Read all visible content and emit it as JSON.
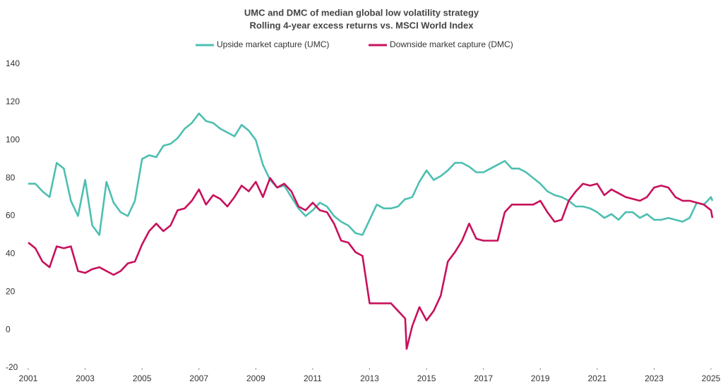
{
  "chart_data": {
    "type": "line",
    "title": "UMC and DMC of median global low volatility strategy",
    "subtitle": "Rolling 4-year excess returns vs. MSCI World Index",
    "x": [
      2001,
      2001.25,
      2001.5,
      2001.75,
      2002,
      2002.25,
      2002.5,
      2002.75,
      2003,
      2003.25,
      2003.5,
      2003.75,
      2004,
      2004.25,
      2004.5,
      2004.75,
      2005,
      2005.25,
      2005.5,
      2005.75,
      2006,
      2006.25,
      2006.5,
      2006.75,
      2007,
      2007.25,
      2007.5,
      2007.75,
      2008,
      2008.25,
      2008.5,
      2008.75,
      2009,
      2009.25,
      2009.5,
      2009.75,
      2010,
      2010.25,
      2010.5,
      2010.75,
      2011,
      2011.25,
      2011.5,
      2011.75,
      2012,
      2012.25,
      2012.5,
      2012.75,
      2013,
      2013.25,
      2013.5,
      2013.75,
      2014,
      2014.25,
      2014.3,
      2014.5,
      2014.75,
      2015,
      2015.25,
      2015.5,
      2015.75,
      2016,
      2016.25,
      2016.5,
      2016.75,
      2017,
      2017.25,
      2017.5,
      2017.75,
      2018,
      2018.25,
      2018.5,
      2018.75,
      2019,
      2019.25,
      2019.5,
      2019.75,
      2020,
      2020.25,
      2020.5,
      2020.75,
      2021,
      2021.25,
      2021.5,
      2021.75,
      2022,
      2022.25,
      2022.5,
      2022.75,
      2023,
      2023.25,
      2023.5,
      2023.75,
      2024,
      2024.25,
      2024.5,
      2024.75,
      2025,
      2025.05
    ],
    "series": [
      {
        "name": "Upside market capture (UMC)",
        "color": "#4dbfb1",
        "values": [
          77,
          77,
          73,
          70,
          88,
          85,
          68,
          60,
          79,
          55,
          50,
          78,
          67,
          62,
          60,
          68,
          90,
          92,
          91,
          97,
          98,
          101,
          106,
          109,
          114,
          110,
          109,
          106,
          104,
          102,
          108,
          105,
          100,
          87,
          79,
          75,
          76,
          70,
          64,
          60,
          63,
          67,
          65,
          60,
          57,
          55,
          51,
          50,
          58,
          66,
          64,
          64,
          65,
          69,
          69,
          70,
          78,
          84,
          79,
          81,
          84,
          88,
          88,
          86,
          83,
          83,
          85,
          87,
          89,
          85,
          85,
          83,
          80,
          77,
          73,
          71,
          70,
          68,
          65,
          65,
          64,
          62,
          59,
          61,
          58,
          62,
          62,
          59,
          61,
          58,
          58,
          59,
          58,
          57,
          59,
          67,
          66,
          70,
          68
        ]
      },
      {
        "name": "Downside market capture (DMC)",
        "color": "#c8105b",
        "values": [
          46,
          43,
          36,
          33,
          44,
          43,
          44,
          31,
          30,
          32,
          33,
          31,
          29,
          31,
          35,
          36,
          45,
          52,
          56,
          52,
          55,
          63,
          64,
          68,
          74,
          66,
          71,
          69,
          65,
          70,
          76,
          73,
          78,
          70,
          80,
          75,
          77,
          73,
          65,
          63,
          67,
          63,
          62,
          56,
          47,
          46,
          41,
          39,
          14,
          14,
          14,
          14,
          10,
          6,
          -10,
          2,
          12,
          5,
          10,
          18,
          36,
          41,
          47,
          56,
          48,
          47,
          47,
          47,
          62,
          66,
          66,
          66,
          66,
          68,
          62,
          57,
          58,
          68,
          73,
          77,
          76,
          77,
          71,
          74,
          72,
          70,
          69,
          68,
          70,
          75,
          76,
          75,
          70,
          68,
          68,
          67,
          66,
          63,
          59
        ]
      }
    ],
    "xlim": [
      2001,
      2025
    ],
    "xticks": [
      2001,
      2003,
      2005,
      2007,
      2009,
      2011,
      2013,
      2015,
      2017,
      2019,
      2021,
      2023,
      2025
    ],
    "ylim": [
      -20,
      140
    ],
    "yticks": [
      -20,
      0,
      20,
      40,
      60,
      80,
      100,
      120,
      140
    ],
    "grid": false,
    "legend": "top"
  }
}
